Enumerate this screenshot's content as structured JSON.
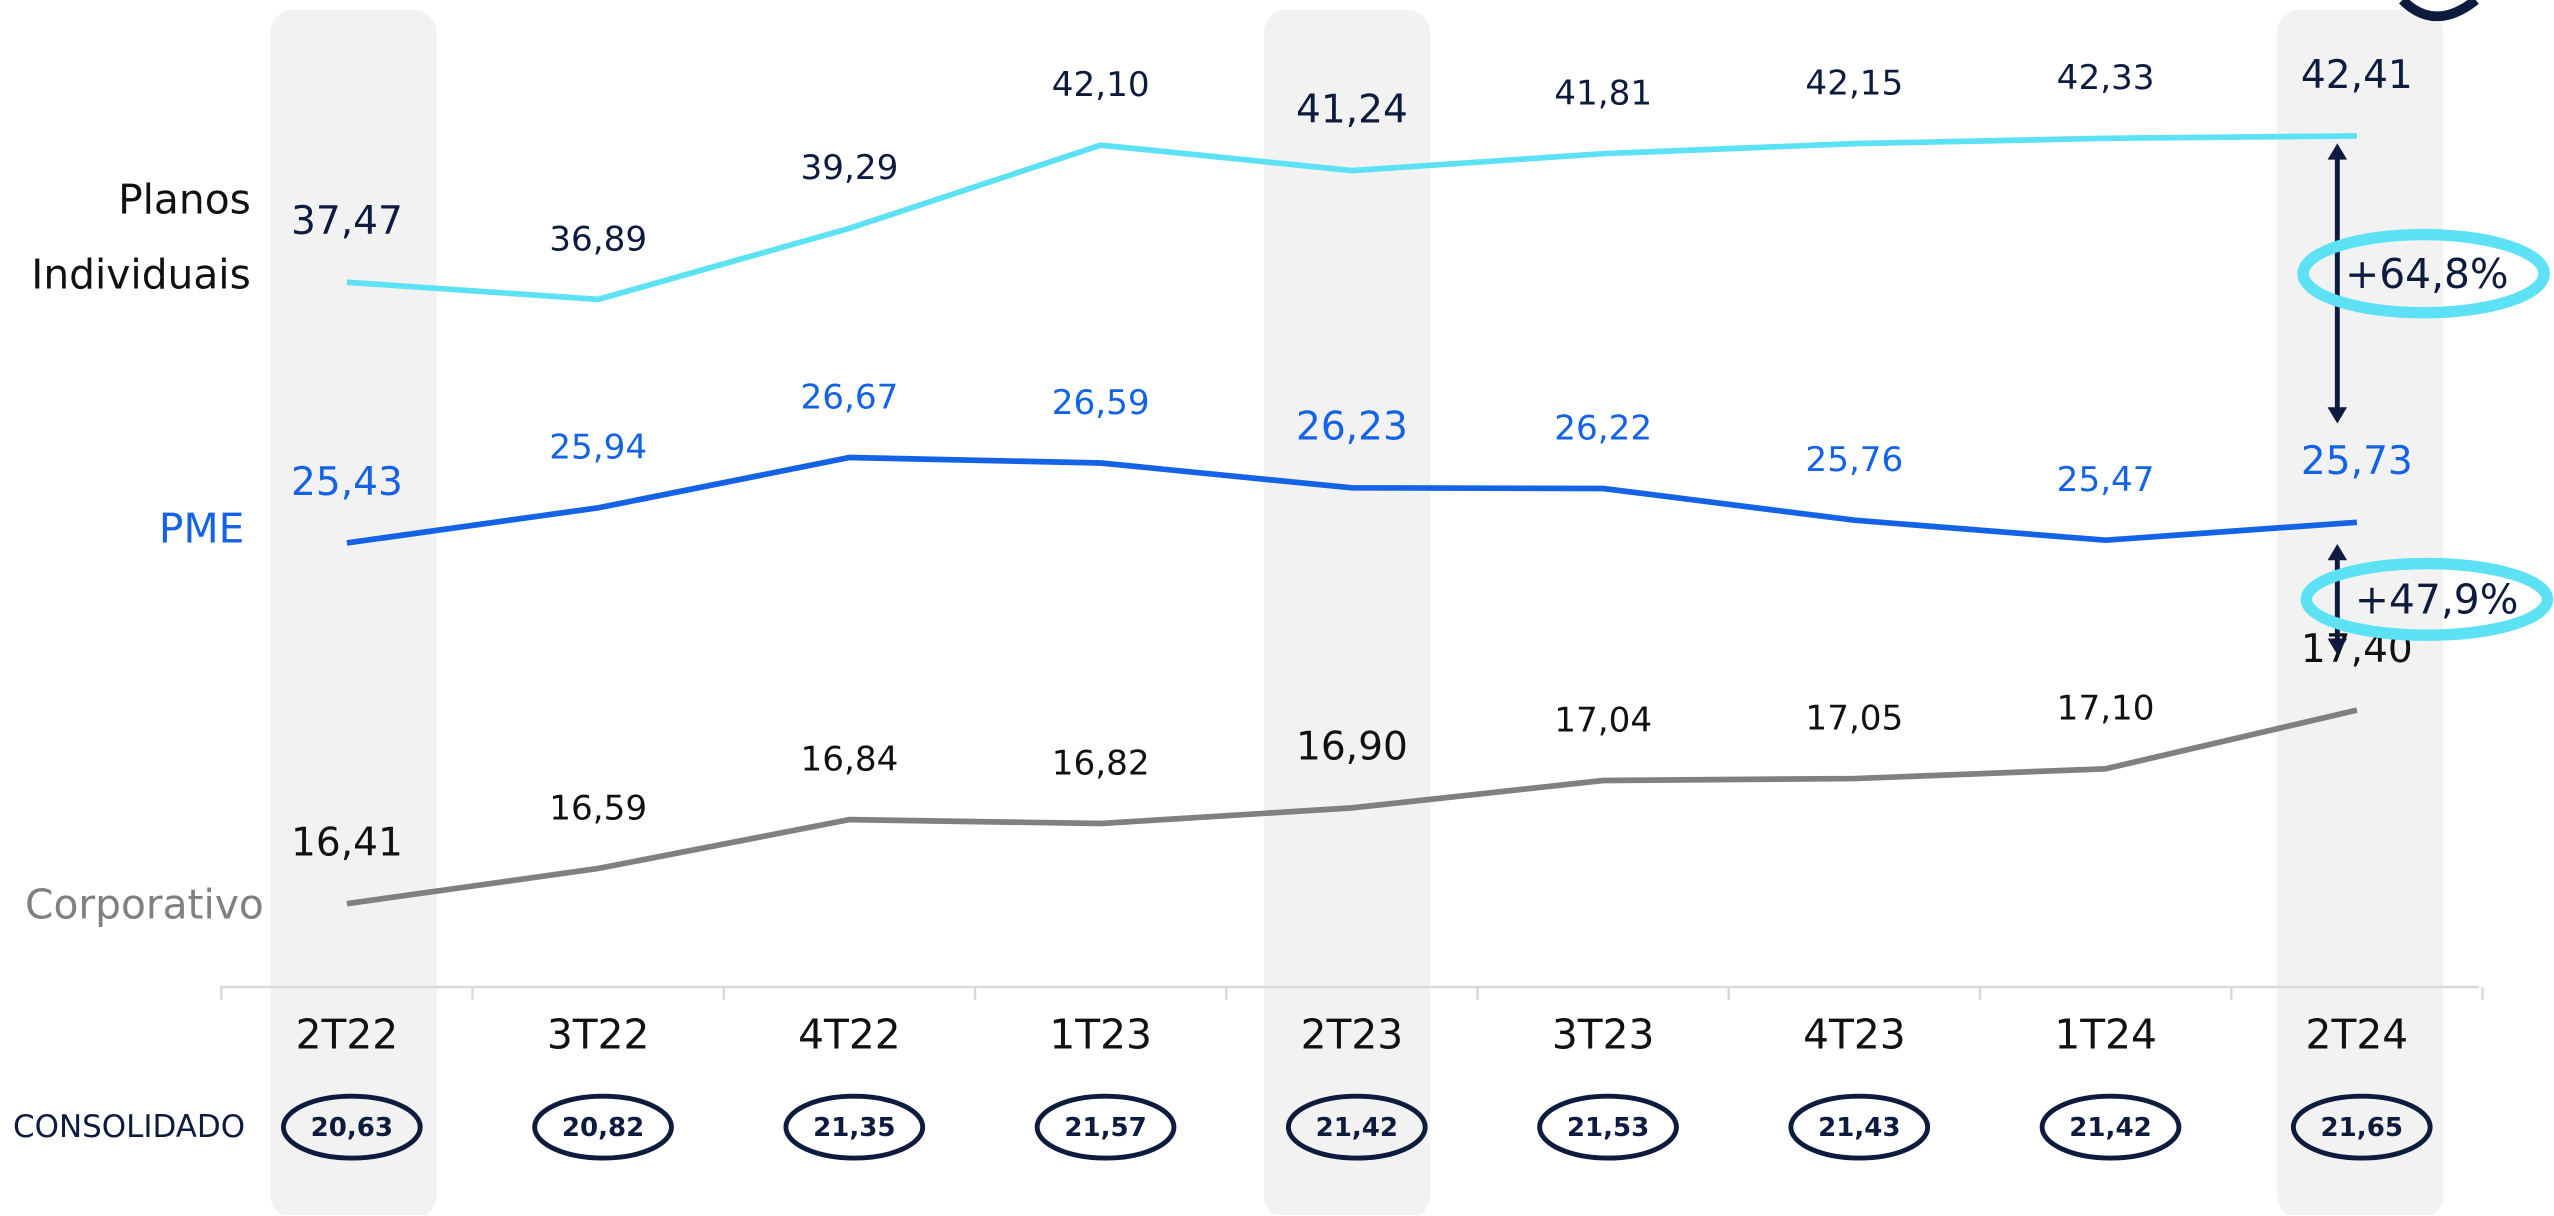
{
  "chart_data": {
    "type": "line",
    "categories": [
      "2T22",
      "3T22",
      "4T22",
      "1T23",
      "2T23",
      "3T23",
      "4T23",
      "1T24",
      "2T24"
    ],
    "series": [
      {
        "name": "Planos Individuais",
        "color": "#5ce1f5",
        "label_color": "#0d1b3e",
        "ylim": [
          36,
          44.8
        ],
        "values": [
          37.47,
          36.89,
          39.29,
          42.1,
          41.24,
          41.81,
          42.15,
          42.33,
          42.41
        ],
        "value_labels": [
          "37,47",
          "36,89",
          "39,29",
          "42,10",
          "41,24",
          "41,81",
          "42,15",
          "42,33",
          "42,41"
        ]
      },
      {
        "name": "PME",
        "color": "#1463e6",
        "label_color": "#1463e6",
        "ylim": [
          24.8,
          27.4
        ],
        "values": [
          25.43,
          25.94,
          26.67,
          26.59,
          26.23,
          26.22,
          25.76,
          25.47,
          25.73
        ],
        "value_labels": [
          "25,43",
          "25,94",
          "26,67",
          "26,59",
          "26,23",
          "26,22",
          "25,76",
          "25,47",
          "25,73"
        ]
      },
      {
        "name": "Corporativo",
        "color": "#808080",
        "label_color": "#111111",
        "ylim": [
          16.2,
          17.7
        ],
        "values": [
          16.41,
          16.59,
          16.84,
          16.82,
          16.9,
          17.04,
          17.05,
          17.1,
          17.4
        ],
        "value_labels": [
          "16,41",
          "16,59",
          "16,84",
          "16,82",
          "16,90",
          "17,04",
          "17,05",
          "17,10",
          "17,40"
        ]
      }
    ],
    "consolidated": {
      "label": "CONSOLIDADO",
      "values": [
        20.63,
        20.82,
        21.35,
        21.57,
        21.42,
        21.53,
        21.43,
        21.42,
        21.65
      ],
      "value_labels": [
        "20,63",
        "20,82",
        "21,35",
        "21,57",
        "21,42",
        "21,53",
        "21,43",
        "21,42",
        "21,65"
      ]
    },
    "annotations": [
      "+64,8%",
      "+47,9%"
    ]
  }
}
